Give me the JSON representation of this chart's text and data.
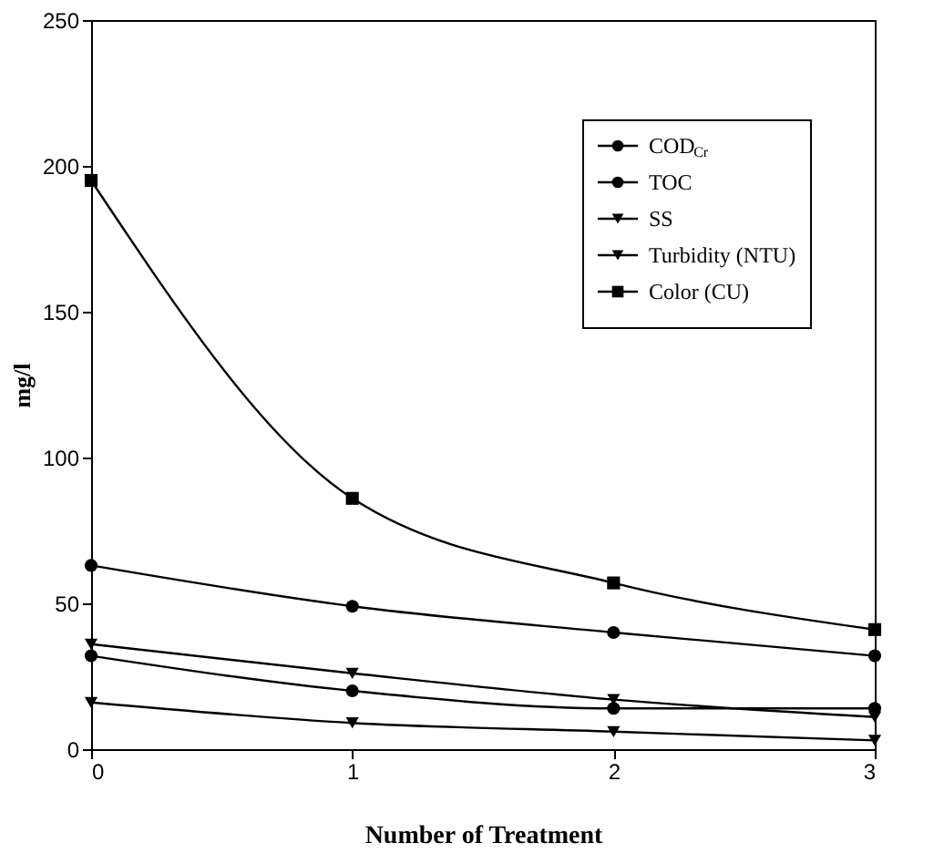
{
  "chart_data": {
    "type": "line",
    "xlabel": "Number of Treatment",
    "ylabel": "mg/l",
    "x": [
      0,
      1,
      2,
      3
    ],
    "xlim": [
      0,
      3
    ],
    "xticks": [
      0,
      1,
      2,
      3
    ],
    "ylim": [
      0,
      250
    ],
    "yticks": [
      0,
      50,
      100,
      150,
      200,
      250
    ],
    "grid": false,
    "legend": "top right",
    "line_style": "solid",
    "series": [
      {
        "name": "COD$_{Cr}$",
        "color": "#000000",
        "marker": "circle",
        "values": [
          63,
          49,
          40,
          32
        ]
      },
      {
        "name": "TOC",
        "color": "#000000",
        "marker": "circle",
        "values": [
          32,
          20,
          14,
          14
        ]
      },
      {
        "name": "SS",
        "color": "#000000",
        "marker": "triangle",
        "values": [
          36,
          26,
          17,
          11
        ]
      },
      {
        "name": "Turbidity (NTU)",
        "color": "#000000",
        "marker": "triangle",
        "values": [
          16,
          9,
          6,
          3
        ]
      },
      {
        "name": "Color (CU)",
        "color": "#000000",
        "marker": "square",
        "values": [
          195,
          86,
          57,
          41
        ]
      }
    ]
  }
}
